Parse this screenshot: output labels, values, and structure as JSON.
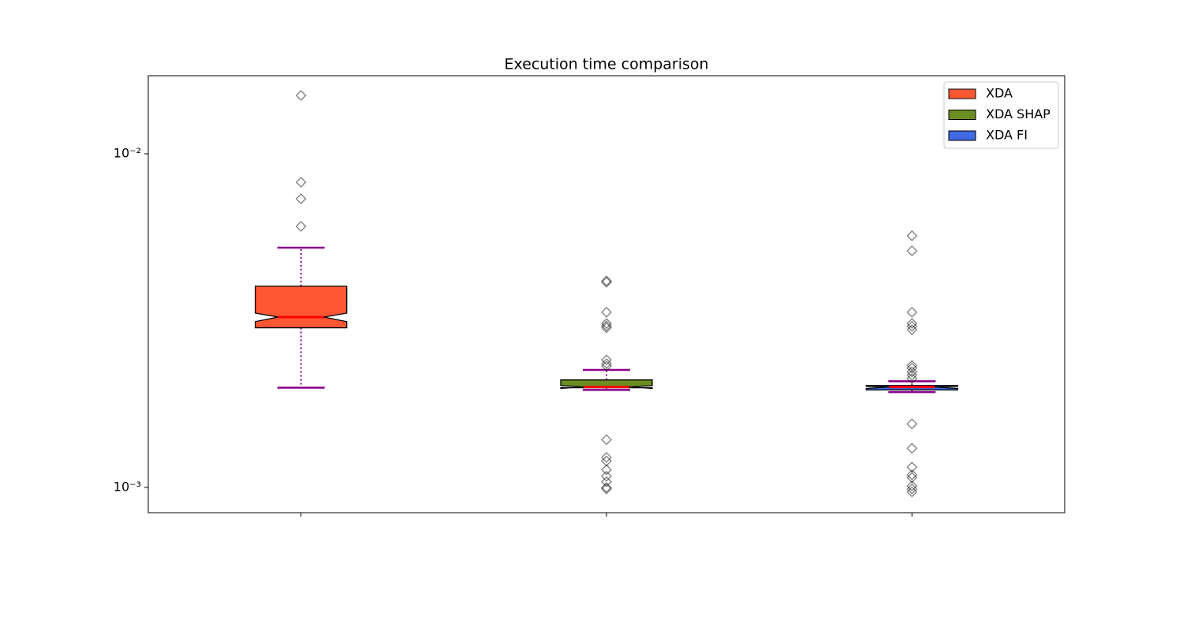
{
  "chart_data": {
    "type": "box",
    "title": "Execution time comparison",
    "yscale": "log",
    "ylim": [
      0.00084,
      0.01714
    ],
    "yticks": [
      {
        "value": 0.001,
        "label": "10⁻³"
      },
      {
        "value": 0.01,
        "label": "10⁻²"
      }
    ],
    "categories": [
      null,
      null,
      null
    ],
    "legend": "upper right",
    "median_color": "#ff0000",
    "whisker_color": "#8b008b",
    "series": [
      {
        "name": "XDA",
        "color": "#ff5733",
        "whislo": 0.00199,
        "q1": 0.00301,
        "med": 0.00324,
        "q3": 0.00401,
        "whishi": 0.00523,
        "notch": [
          0.00314,
          0.00333
        ],
        "fliers": [
          0.01496,
          0.00822,
          0.00733,
          0.00606
        ]
      },
      {
        "name": "XDA SHAP",
        "color": "#6b8e23",
        "whislo": 0.00196,
        "q1": 0.00199,
        "med": 0.002,
        "q3": 0.0021,
        "whishi": 0.00225,
        "notch": [
          0.00198,
          0.00202
        ],
        "fliers": [
          0.00416,
          0.00412,
          0.00335,
          0.0031,
          0.00305,
          0.00301,
          0.00241,
          0.00235,
          0.00231,
          0.00139,
          0.00123,
          0.0012,
          0.00113,
          0.00108,
          0.00104,
          0.001,
          0.00099
        ]
      },
      {
        "name": "XDA FI",
        "color": "#4169e1",
        "whislo": 0.00193,
        "q1": 0.00196,
        "med": 0.002,
        "q3": 0.00202,
        "whishi": 0.00208,
        "notch": [
          0.00198,
          0.00201
        ],
        "fliers": [
          0.00568,
          0.00512,
          0.00335,
          0.0031,
          0.00304,
          0.00297,
          0.00232,
          0.00228,
          0.00222,
          0.00217,
          0.00212,
          0.00155,
          0.00131,
          0.00115,
          0.00109,
          0.00107,
          0.00101,
          0.00099,
          0.00097
        ]
      }
    ]
  }
}
